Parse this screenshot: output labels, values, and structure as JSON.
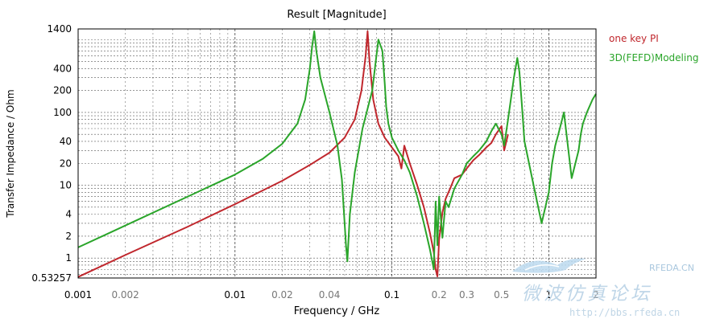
{
  "chart_data": {
    "type": "line",
    "title": "Result [Magnitude]",
    "xlabel": "Frequency / GHz",
    "ylabel": "Transfer Impedance / Ohm",
    "x_scale": "log",
    "y_scale": "log",
    "xlim": [
      0.001,
      2
    ],
    "ylim": [
      0.53257,
      1400
    ],
    "grid": true,
    "legend_position": "right",
    "x_ticks": [
      {
        "value": 0.001,
        "label": "0.001",
        "major": true
      },
      {
        "value": 0.002,
        "label": "0.002",
        "major": false
      },
      {
        "value": 0.01,
        "label": "0.01",
        "major": true
      },
      {
        "value": 0.02,
        "label": "0.02",
        "major": false
      },
      {
        "value": 0.04,
        "label": "0.04",
        "major": false
      },
      {
        "value": 0.1,
        "label": "0.1",
        "major": true
      },
      {
        "value": 0.2,
        "label": "0.2",
        "major": false
      },
      {
        "value": 0.3,
        "label": "0.3",
        "major": false
      },
      {
        "value": 0.5,
        "label": "0.5",
        "major": false
      },
      {
        "value": 1,
        "label": "1",
        "major": true
      },
      {
        "value": 2,
        "label": "2",
        "major": false
      }
    ],
    "y_ticks": [
      {
        "value": 0.53257,
        "label": "0.53257"
      },
      {
        "value": 1,
        "label": "1"
      },
      {
        "value": 2,
        "label": "2"
      },
      {
        "value": 4,
        "label": "4"
      },
      {
        "value": 10,
        "label": "10"
      },
      {
        "value": 20,
        "label": "20"
      },
      {
        "value": 40,
        "label": "40"
      },
      {
        "value": 100,
        "label": "100"
      },
      {
        "value": 200,
        "label": "200"
      },
      {
        "value": 400,
        "label": "400"
      },
      {
        "value": 1400,
        "label": "1400"
      }
    ],
    "series": [
      {
        "name": "one key PI",
        "color": "#c0272d",
        "x": [
          0.001,
          0.002,
          0.005,
          0.01,
          0.02,
          0.03,
          0.04,
          0.05,
          0.058,
          0.064,
          0.068,
          0.07,
          0.072,
          0.076,
          0.082,
          0.09,
          0.1,
          0.11,
          0.115,
          0.12,
          0.13,
          0.145,
          0.16,
          0.175,
          0.185,
          0.19,
          0.195,
          0.2,
          0.21,
          0.22,
          0.235,
          0.25,
          0.28,
          0.3,
          0.33,
          0.36,
          0.4,
          0.43,
          0.46,
          0.5,
          0.52,
          0.55
        ],
        "y": [
          0.55,
          1.1,
          2.7,
          5.5,
          11.5,
          19,
          28,
          45,
          80,
          200,
          600,
          1300,
          500,
          150,
          70,
          45,
          33,
          25,
          17,
          35,
          20,
          10,
          5,
          2.2,
          1.2,
          0.7,
          0.56,
          1.8,
          4.2,
          6.5,
          9,
          12.5,
          14,
          17,
          22,
          26,
          33,
          38,
          50,
          65,
          30,
          50
        ]
      },
      {
        "name": "3D(FEFD)Modeling",
        "color": "#2aa52a",
        "x": [
          0.001,
          0.002,
          0.005,
          0.01,
          0.015,
          0.02,
          0.025,
          0.028,
          0.03,
          0.031,
          0.032,
          0.033,
          0.035,
          0.04,
          0.045,
          0.048,
          0.05,
          0.051,
          0.052,
          0.054,
          0.058,
          0.065,
          0.075,
          0.082,
          0.087,
          0.09,
          0.092,
          0.095,
          0.1,
          0.11,
          0.12,
          0.13,
          0.145,
          0.16,
          0.175,
          0.185,
          0.19,
          0.195,
          0.2,
          0.21,
          0.22,
          0.23,
          0.25,
          0.28,
          0.3,
          0.33,
          0.36,
          0.4,
          0.43,
          0.46,
          0.5,
          0.52,
          0.55,
          0.6,
          0.63,
          0.65,
          0.67,
          0.7,
          0.8,
          0.9,
          1.0,
          1.05,
          1.1,
          1.15,
          1.25,
          1.4,
          1.55,
          1.6,
          1.65,
          1.75,
          1.9,
          2.0
        ],
        "y": [
          1.4,
          2.8,
          7,
          14,
          23,
          37,
          70,
          150,
          400,
          800,
          1300,
          700,
          300,
          100,
          35,
          12,
          3,
          1.5,
          0.9,
          4,
          15,
          60,
          200,
          1000,
          700,
          250,
          120,
          70,
          45,
          30,
          22,
          15,
          7,
          3,
          1.3,
          0.7,
          6,
          1.5,
          7,
          1.9,
          6,
          5,
          9,
          14,
          20,
          25,
          30,
          40,
          55,
          70,
          50,
          35,
          80,
          300,
          560,
          360,
          150,
          40,
          10,
          3,
          8,
          20,
          35,
          50,
          100,
          12.5,
          30,
          50,
          70,
          100,
          150,
          180
        ]
      }
    ],
    "watermark": {
      "tag": "RFEDA.CN",
      "text": "微波仿真论坛",
      "url": "http://bbs.rfeda.cn"
    }
  }
}
